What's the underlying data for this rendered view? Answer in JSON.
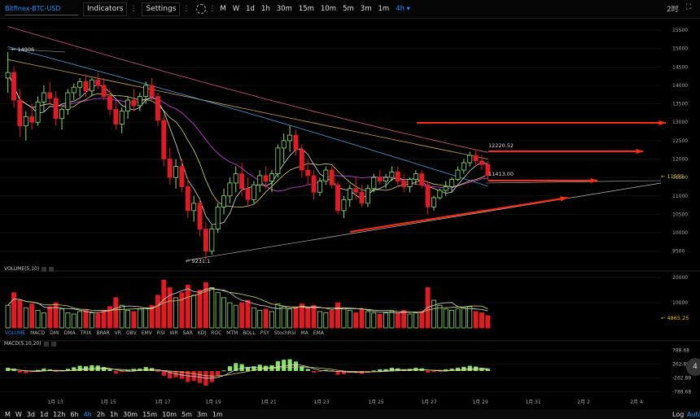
{
  "toolbar": {
    "symbol": "Bitfinex-BTC-USD",
    "indicators_label": "Indicators",
    "settings_label": "Settings",
    "timeframes": [
      "M",
      "W",
      "1d",
      "1h",
      "30m",
      "15m",
      "10m",
      "5m",
      "3m",
      "1m"
    ],
    "active_timeframe": "4h ▾",
    "right_label": "2时"
  },
  "bottom": {
    "timeframes": [
      "M",
      "W",
      "3d",
      "1d",
      "12h",
      "6h",
      "4h",
      "2h",
      "1h",
      "30m",
      "15m",
      "10m",
      "5m",
      "3m",
      "1m"
    ],
    "active": "4h",
    "log_label": "Log",
    "auto_label": "Auto"
  },
  "indicator_tabs": [
    "VOLUME",
    "MACD",
    "DMI",
    "DMA",
    "TRIX",
    "BRAR",
    "VR",
    "OBV",
    "EMV",
    "RSI",
    "WR",
    "SAR",
    "KDJ",
    "ROC",
    "MTM",
    "BOLL",
    "PSY",
    "StochRSI",
    "MA",
    "EMA"
  ],
  "volume_label": "VOLUME(5,10)",
  "macd_label": "MACD(5,10,20)",
  "colors": {
    "up": "#88e26a",
    "down": "#e01b24",
    "blue_ma": "#4fa3e0",
    "orange_ma": "#c9a050",
    "purple_ma": "#c23ad8",
    "pink_ma": "#e05a7a",
    "white_ma": "#dcdcdc",
    "yellow_ma": "#d8d86a"
  },
  "chart_data": {
    "type": "candlestick",
    "price_ticks": [
      "15500",
      "15000",
      "14500",
      "14000",
      "13500",
      "13000",
      "12500",
      "12000",
      "11500",
      "11000",
      "10500",
      "10000",
      "9500"
    ],
    "ylim": [
      9250,
      15700
    ],
    "annotations": {
      "high_label": "← 14906",
      "low_label": "← 9231.1",
      "upper_label": "12220.52",
      "mid_label": "11413.00",
      "last_price": "← 11555",
      "volume_last": "← 4865.25"
    },
    "volume_ticks": [
      "20000",
      "10000"
    ],
    "macd_ticks": [
      "788.68",
      "262.89",
      "-262.89",
      "-788.68"
    ],
    "macd_badge": "4",
    "x_labels": [
      "1月 13",
      "1月 15",
      "1月 17",
      "1月 19",
      "1月 21",
      "1月 23",
      "1月 25",
      "1月 27",
      "1月 29",
      "1月 31",
      "2月 2",
      "2月 4"
    ],
    "candles": [
      [
        14200,
        14906,
        13800,
        14350
      ],
      [
        14350,
        14500,
        13400,
        13600
      ],
      [
        13600,
        13900,
        12600,
        12900
      ],
      [
        12900,
        13300,
        12500,
        13150
      ],
      [
        13150,
        13500,
        12800,
        13000
      ],
      [
        13000,
        13700,
        12900,
        13550
      ],
      [
        13550,
        14000,
        13300,
        13800
      ],
      [
        13800,
        14100,
        13500,
        13650
      ],
      [
        13650,
        13850,
        12900,
        13100
      ],
      [
        13100,
        13400,
        12800,
        13350
      ],
      [
        13350,
        13900,
        13200,
        13800
      ],
      [
        13800,
        14050,
        13600,
        13950
      ],
      [
        13950,
        14200,
        13700,
        14100
      ],
      [
        14100,
        14300,
        13700,
        13850
      ],
      [
        13850,
        14200,
        13700,
        14150
      ],
      [
        14150,
        14350,
        13900,
        14000
      ],
      [
        14000,
        14200,
        13600,
        13700
      ],
      [
        13700,
        13900,
        13200,
        13350
      ],
      [
        13350,
        13600,
        12800,
        12950
      ],
      [
        12950,
        13400,
        12700,
        13300
      ],
      [
        13300,
        13700,
        13100,
        13600
      ],
      [
        13600,
        13900,
        13300,
        13450
      ],
      [
        13450,
        13800,
        13300,
        13700
      ],
      [
        13700,
        14100,
        13500,
        14000
      ],
      [
        14000,
        14200,
        13600,
        13700
      ],
      [
        13700,
        13800,
        12900,
        13050
      ],
      [
        13050,
        13200,
        11800,
        12000
      ],
      [
        12000,
        12300,
        11300,
        11500
      ],
      [
        11500,
        12000,
        11200,
        11800
      ],
      [
        11800,
        12000,
        11100,
        11250
      ],
      [
        11250,
        11500,
        10400,
        10600
      ],
      [
        10600,
        11000,
        10300,
        10800
      ],
      [
        10800,
        10900,
        9900,
        10100
      ],
      [
        10100,
        10300,
        9231,
        9500
      ],
      [
        9500,
        10200,
        9400,
        10100
      ],
      [
        10100,
        10800,
        10000,
        10700
      ],
      [
        10700,
        11200,
        10500,
        11000
      ],
      [
        11000,
        11500,
        10800,
        11350
      ],
      [
        11350,
        11800,
        11100,
        11600
      ],
      [
        11600,
        11900,
        11000,
        11200
      ],
      [
        11200,
        11500,
        10700,
        10900
      ],
      [
        10900,
        11400,
        10800,
        11300
      ],
      [
        11300,
        11700,
        11100,
        11550
      ],
      [
        11550,
        11800,
        11200,
        11400
      ],
      [
        11400,
        11700,
        11100,
        11600
      ],
      [
        11600,
        12400,
        11500,
        12300
      ],
      [
        12300,
        12700,
        11900,
        12500
      ],
      [
        12500,
        12900,
        12200,
        12650
      ],
      [
        12650,
        12800,
        12100,
        12250
      ],
      [
        12250,
        12400,
        11500,
        11700
      ],
      [
        11700,
        12000,
        11300,
        11550
      ],
      [
        11550,
        11700,
        10900,
        11100
      ],
      [
        11100,
        11500,
        11000,
        11400
      ],
      [
        11400,
        11800,
        11300,
        11700
      ],
      [
        11700,
        11800,
        11200,
        11300
      ],
      [
        11300,
        11400,
        10500,
        10600
      ],
      [
        10600,
        11000,
        10400,
        10900
      ],
      [
        10900,
        11300,
        10700,
        11200
      ],
      [
        11200,
        11500,
        10900,
        11100
      ],
      [
        11100,
        11300,
        10700,
        10800
      ],
      [
        10800,
        11300,
        10700,
        11200
      ],
      [
        11200,
        11600,
        11100,
        11500
      ],
      [
        11500,
        11700,
        11300,
        11400
      ],
      [
        11400,
        11600,
        11200,
        11500
      ],
      [
        11500,
        11800,
        11400,
        11650
      ],
      [
        11650,
        11800,
        11300,
        11400
      ],
      [
        11400,
        11600,
        11100,
        11250
      ],
      [
        11250,
        11500,
        11100,
        11450
      ],
      [
        11450,
        11700,
        11300,
        11600
      ],
      [
        11600,
        11700,
        11200,
        11300
      ],
      [
        11300,
        11400,
        10500,
        10700
      ],
      [
        10700,
        11000,
        10600,
        10950
      ],
      [
        10950,
        11200,
        10900,
        11150
      ],
      [
        11150,
        11400,
        11000,
        11250
      ],
      [
        11250,
        11500,
        11100,
        11450
      ],
      [
        11450,
        11800,
        11400,
        11700
      ],
      [
        11700,
        12000,
        11600,
        11900
      ],
      [
        11900,
        12200,
        11800,
        12100
      ],
      [
        12100,
        12250,
        11800,
        11950
      ],
      [
        11950,
        12100,
        11700,
        11850
      ],
      [
        11850,
        11950,
        11413,
        11555
      ]
    ],
    "volumes": [
      9000,
      14000,
      11000,
      8000,
      9500,
      7000,
      6000,
      8500,
      10000,
      7500,
      6000,
      5500,
      6500,
      7000,
      6000,
      5800,
      7000,
      8500,
      12000,
      9000,
      7000,
      6500,
      7500,
      8000,
      9000,
      13000,
      19000,
      16000,
      12000,
      14000,
      17000,
      13000,
      15000,
      18000,
      16000,
      14000,
      12000,
      10000,
      9000,
      10000,
      11000,
      8000,
      7000,
      7500,
      6500,
      9500,
      8500,
      7500,
      8000,
      9500,
      8000,
      9000,
      6500,
      6000,
      7000,
      10000,
      8000,
      7000,
      6000,
      7500,
      6500,
      6000,
      5500,
      6000,
      6500,
      6000,
      7000,
      5500,
      6000,
      6500,
      16000,
      11000,
      9000,
      7500,
      7000,
      7500,
      8000,
      8500,
      6500,
      6000,
      4865
    ],
    "macd": [
      120,
      90,
      -60,
      -80,
      -40,
      40,
      90,
      60,
      -30,
      20,
      80,
      140,
      200,
      180,
      220,
      210,
      150,
      60,
      -100,
      -40,
      40,
      80,
      90,
      150,
      110,
      -20,
      -180,
      -280,
      -240,
      -300,
      -420,
      -380,
      -460,
      -560,
      -420,
      -200,
      20,
      180,
      300,
      260,
      150,
      180,
      240,
      200,
      220,
      380,
      430,
      450,
      360,
      180,
      80,
      -60,
      -20,
      40,
      20,
      -140,
      -120,
      -60,
      -50,
      -110,
      -60,
      20,
      60,
      70,
      120,
      100,
      60,
      80,
      120,
      100,
      -60,
      -40,
      20,
      60,
      90,
      120,
      160,
      200,
      170,
      120,
      90
    ]
  }
}
